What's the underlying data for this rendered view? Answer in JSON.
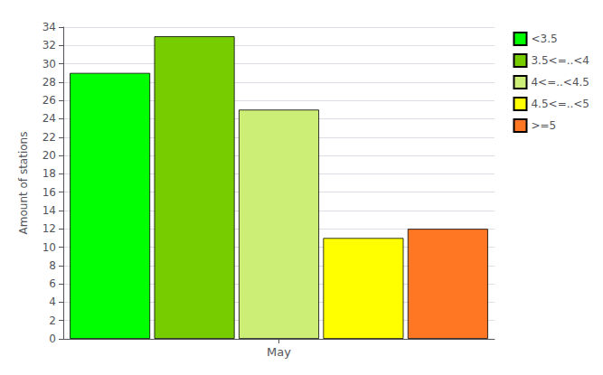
{
  "chart_data": {
    "type": "bar",
    "categories": [
      "May"
    ],
    "series": [
      {
        "name": "<3.5",
        "color": "#00ff00",
        "values": [
          29
        ]
      },
      {
        "name": "3.5<=..<4",
        "color": "#77cc00",
        "values": [
          33
        ]
      },
      {
        "name": "4<=..<4.5",
        "color": "#ccee77",
        "values": [
          25
        ]
      },
      {
        "name": "4.5<=..<5",
        "color": "#ffff00",
        "values": [
          11
        ]
      },
      {
        "name": ">=5",
        "color": "#ff7722",
        "values": [
          12
        ]
      }
    ],
    "ylabel": "Amount of stations",
    "ylim": [
      0,
      34
    ],
    "yticks": [
      0,
      2,
      4,
      6,
      8,
      10,
      12,
      14,
      16,
      18,
      20,
      22,
      24,
      26,
      28,
      30,
      32,
      34
    ],
    "grid": true,
    "legend": "upper right"
  }
}
